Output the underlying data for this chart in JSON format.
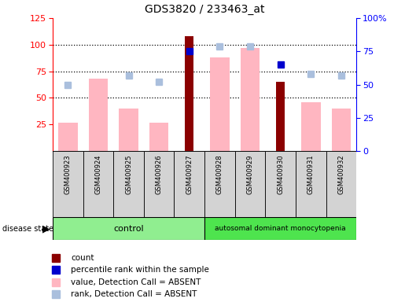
{
  "title": "GDS3820 / 233463_at",
  "samples": [
    "GSM400923",
    "GSM400924",
    "GSM400925",
    "GSM400926",
    "GSM400927",
    "GSM400928",
    "GSM400929",
    "GSM400930",
    "GSM400931",
    "GSM400932"
  ],
  "count": [
    null,
    null,
    null,
    null,
    108,
    null,
    null,
    65,
    null,
    null
  ],
  "percentile_rank": [
    null,
    null,
    null,
    null,
    75,
    null,
    null,
    65,
    null,
    null
  ],
  "value_absent": [
    27,
    68,
    40,
    27,
    null,
    88,
    97,
    null,
    46,
    40
  ],
  "rank_absent": [
    50,
    null,
    57,
    52,
    null,
    79,
    79,
    null,
    58,
    57
  ],
  "ylim_left": [
    0,
    125
  ],
  "ylim_right": [
    0,
    100
  ],
  "yticks_left": [
    25,
    50,
    75,
    100,
    125
  ],
  "yticks_right": [
    0,
    25,
    50,
    75,
    100
  ],
  "ytick_labels_right": [
    "0",
    "25",
    "50",
    "75",
    "100%"
  ],
  "color_count": "#8B0000",
  "color_percentile": "#0000CD",
  "color_value_absent": "#FFB6C1",
  "color_rank_absent": "#AABFDD",
  "color_control_bg": "#90EE90",
  "color_disease_bg": "#4EE44E",
  "legend_items": [
    {
      "label": "count",
      "color": "#8B0000"
    },
    {
      "label": "percentile rank within the sample",
      "color": "#0000CD"
    },
    {
      "label": "value, Detection Call = ABSENT",
      "color": "#FFB6C1"
    },
    {
      "label": "rank, Detection Call = ABSENT",
      "color": "#AABFDD"
    }
  ]
}
